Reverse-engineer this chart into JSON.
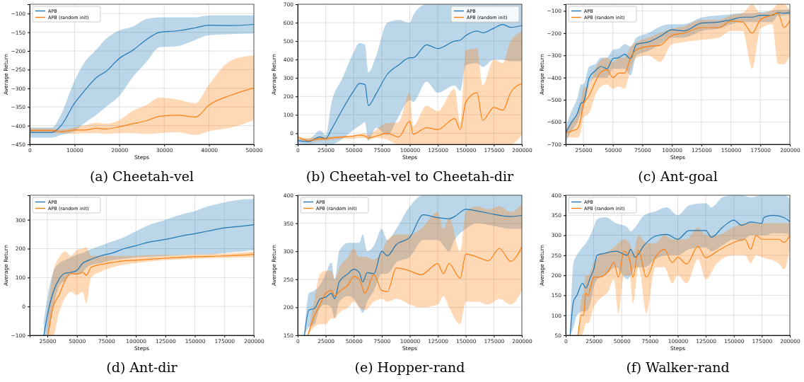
{
  "chart_data": [
    {
      "type": "line",
      "title": "(a) Cheetah-vel",
      "xlabel": "Steps",
      "ylabel": "Average Return",
      "xlim": [
        0,
        50000
      ],
      "xticks": [
        0,
        10000,
        20000,
        30000,
        40000,
        50000
      ],
      "ylim": [
        -450,
        -75
      ],
      "yticks": [
        -450,
        -400,
        -350,
        -300,
        -250,
        -200,
        -150,
        -100
      ],
      "grid": true,
      "legend": "top left",
      "series": [
        {
          "name": "APB",
          "color": "#1f77b4",
          "x": [
            0,
            5000,
            7000,
            10000,
            12000,
            15000,
            17000,
            20000,
            23000,
            26000,
            29000,
            33000,
            37000,
            40000,
            45000,
            50000
          ],
          "values": [
            -418,
            -418,
            -400,
            -340,
            -310,
            -270,
            -255,
            -220,
            -198,
            -170,
            -150,
            -146,
            -138,
            -131,
            -132,
            -129
          ],
          "lower": [
            -432,
            -432,
            -425,
            -415,
            -395,
            -370,
            -350,
            -320,
            -270,
            -230,
            -190,
            -187,
            -170,
            -158,
            -155,
            -153
          ],
          "upper": [
            -405,
            -405,
            -370,
            -280,
            -235,
            -195,
            -168,
            -145,
            -135,
            -115,
            -110,
            -110,
            -110,
            -105,
            -105,
            -105
          ]
        },
        {
          "name": "APB (random init)",
          "color": "#ff7f0e",
          "x": [
            0,
            5000,
            7000,
            10000,
            12000,
            15000,
            17000,
            20000,
            23000,
            26000,
            29000,
            33000,
            37000,
            40000,
            45000,
            50000
          ],
          "values": [
            -413,
            -413,
            -416,
            -412,
            -412,
            -407,
            -409,
            -403,
            -395,
            -387,
            -375,
            -372,
            -377,
            -345,
            -318,
            -299
          ],
          "lower": [
            -420,
            -420,
            -420,
            -422,
            -420,
            -420,
            -422,
            -420,
            -420,
            -422,
            -420,
            -418,
            -425,
            -415,
            -405,
            -385
          ],
          "upper": [
            -408,
            -408,
            -410,
            -405,
            -400,
            -392,
            -395,
            -385,
            -360,
            -345,
            -325,
            -330,
            -340,
            -290,
            -225,
            -212
          ]
        }
      ]
    },
    {
      "type": "line",
      "title": "(b) Cheetah-vel to Cheetah-dir",
      "xlabel": "Steps",
      "ylabel": "Average Return",
      "xlim": [
        0,
        200000
      ],
      "xticks": [
        0,
        25000,
        50000,
        75000,
        100000,
        125000,
        150000,
        175000,
        200000
      ],
      "ylim": [
        -60,
        700
      ],
      "yticks": [
        0,
        100,
        200,
        300,
        400,
        500,
        600,
        700
      ],
      "grid": true,
      "legend": "top right",
      "series": [
        {
          "name": "APB",
          "color": "#1f77b4",
          "x": [
            0,
            10000,
            20000,
            25000,
            30000,
            40000,
            50000,
            55000,
            60000,
            63000,
            70000,
            80000,
            90000,
            100000,
            103000,
            115000,
            125000,
            140000,
            145000,
            150000,
            160000,
            165000,
            175000,
            183000,
            190000,
            200000
          ],
          "values": [
            -40,
            -45,
            -20,
            -30,
            20,
            130,
            230,
            270,
            265,
            150,
            215,
            320,
            370,
            410,
            410,
            480,
            460,
            500,
            505,
            530,
            555,
            545,
            570,
            590,
            575,
            585
          ],
          "lower": [
            -55,
            -60,
            -55,
            -60,
            -60,
            -30,
            20,
            40,
            60,
            -40,
            30,
            -10,
            90,
            180,
            170,
            280,
            220,
            260,
            230,
            370,
            380,
            360,
            400,
            400,
            390,
            390
          ],
          "upper": [
            -30,
            -30,
            15,
            -10,
            160,
            300,
            440,
            490,
            480,
            330,
            420,
            600,
            615,
            600,
            640,
            700,
            700,
            700,
            700,
            700,
            700,
            700,
            700,
            700,
            700,
            700
          ]
        },
        {
          "name": "APB (random init)",
          "color": "#ff7f0e",
          "x": [
            0,
            10000,
            20000,
            25000,
            30000,
            40000,
            50000,
            55000,
            60000,
            63000,
            70000,
            80000,
            90000,
            100000,
            103000,
            115000,
            125000,
            140000,
            145000,
            150000,
            160000,
            165000,
            175000,
            183000,
            190000,
            200000
          ],
          "values": [
            -20,
            -40,
            -30,
            -30,
            -25,
            -20,
            -15,
            -10,
            -15,
            -25,
            -15,
            0,
            -20,
            65,
            -5,
            30,
            20,
            80,
            20,
            170,
            220,
            70,
            140,
            125,
            220,
            270
          ],
          "lower": [
            -30,
            -50,
            -40,
            -40,
            -35,
            -30,
            -30,
            -25,
            -25,
            -35,
            -25,
            -35,
            -60,
            -60,
            -60,
            -60,
            -60,
            -60,
            -60,
            -60,
            -60,
            -60,
            -60,
            -60,
            -60,
            -10
          ],
          "upper": [
            -20,
            -25,
            -20,
            -20,
            -20,
            -15,
            -10,
            -5,
            0,
            -10,
            20,
            55,
            60,
            220,
            40,
            150,
            120,
            240,
            60,
            450,
            460,
            260,
            400,
            380,
            500,
            550
          ]
        }
      ]
    },
    {
      "type": "line",
      "title": "(c) Ant-goal",
      "xlabel": "Steps",
      "ylabel": "Average Return",
      "xlim": [
        10000,
        200000
      ],
      "xticks": [
        25000,
        50000,
        75000,
        100000,
        125000,
        150000,
        175000,
        200000
      ],
      "ylim": [
        -700,
        -70
      ],
      "yticks": [
        -700,
        -600,
        -500,
        -400,
        -300,
        -200,
        -100
      ],
      "grid": true,
      "legend": "top left",
      "series": [
        {
          "name": "APB",
          "color": "#1f77b4",
          "x": [
            10000,
            15000,
            20000,
            23000,
            25000,
            30000,
            35000,
            40000,
            45000,
            50000,
            55000,
            60000,
            65000,
            70000,
            80000,
            90000,
            100000,
            110000,
            125000,
            140000,
            150000,
            160000,
            168000,
            175000,
            185000,
            190000,
            195000,
            200000
          ],
          "values": [
            -650,
            -600,
            -560,
            -515,
            -510,
            -400,
            -370,
            -350,
            -360,
            -315,
            -310,
            -295,
            -315,
            -250,
            -240,
            -215,
            -185,
            -190,
            -155,
            -150,
            -140,
            -128,
            -128,
            -120,
            -120,
            -108,
            -110,
            -108
          ],
          "lower": [
            -690,
            -640,
            -600,
            -560,
            -540,
            -430,
            -400,
            -400,
            -400,
            -360,
            -360,
            -360,
            -390,
            -300,
            -280,
            -250,
            -220,
            -220,
            -190,
            -180,
            -160,
            -150,
            -150,
            -150,
            -150,
            -120,
            -120,
            -118
          ],
          "upper": [
            -620,
            -550,
            -490,
            -430,
            -430,
            -350,
            -340,
            -310,
            -310,
            -275,
            -270,
            -250,
            -260,
            -220,
            -200,
            -170,
            -160,
            -160,
            -130,
            -120,
            -115,
            -110,
            -110,
            -105,
            -100,
            -95,
            -95,
            -95
          ]
        },
        {
          "name": "APB (random init)",
          "color": "#ff7f0e",
          "x": [
            10000,
            15000,
            20000,
            23000,
            25000,
            30000,
            35000,
            40000,
            45000,
            50000,
            55000,
            60000,
            65000,
            70000,
            80000,
            90000,
            100000,
            110000,
            125000,
            140000,
            150000,
            160000,
            168000,
            175000,
            185000,
            190000,
            195000,
            200000
          ],
          "values": [
            -650,
            -640,
            -630,
            -580,
            -520,
            -480,
            -420,
            -375,
            -365,
            -400,
            -380,
            -380,
            -310,
            -275,
            -260,
            -255,
            -210,
            -200,
            -175,
            -175,
            -145,
            -150,
            -200,
            -140,
            -118,
            -110,
            -175,
            -145
          ],
          "lower": [
            -670,
            -670,
            -670,
            -640,
            -580,
            -560,
            -480,
            -440,
            -430,
            -450,
            -440,
            -450,
            -360,
            -310,
            -300,
            -330,
            -250,
            -240,
            -230,
            -220,
            -190,
            -190,
            -360,
            -180,
            -160,
            -340,
            -340,
            -300
          ],
          "upper": [
            -630,
            -600,
            -560,
            -500,
            -450,
            -430,
            -360,
            -320,
            -310,
            -330,
            -310,
            -310,
            -260,
            -240,
            -220,
            -200,
            -180,
            -170,
            -140,
            -140,
            -120,
            -110,
            -70,
            -110,
            -95,
            -70,
            -70,
            -100
          ]
        }
      ]
    },
    {
      "type": "line",
      "title": "(d) Ant-dir",
      "xlabel": "Steps",
      "ylabel": "Average Return",
      "xlim": [
        10000,
        200000
      ],
      "xticks": [
        25000,
        50000,
        75000,
        100000,
        125000,
        150000,
        175000,
        200000
      ],
      "ylim": [
        -100,
        385
      ],
      "yticks": [
        -100,
        0,
        100,
        200,
        300
      ],
      "grid": true,
      "legend": "top left",
      "series": [
        {
          "name": "APB",
          "color": "#1f77b4",
          "x": [
            22000,
            25000,
            30000,
            35000,
            40000,
            45000,
            50000,
            55000,
            60000,
            70000,
            80000,
            90000,
            100000,
            110000,
            125000,
            140000,
            150000,
            160000,
            175000,
            190000,
            200000
          ],
          "values": [
            -100,
            -30,
            50,
            95,
            115,
            118,
            125,
            150,
            160,
            175,
            185,
            200,
            210,
            222,
            232,
            245,
            252,
            260,
            272,
            278,
            283
          ],
          "lower": [
            -100,
            -100,
            0,
            70,
            90,
            110,
            110,
            120,
            140,
            150,
            160,
            165,
            170,
            172,
            175,
            178,
            180,
            180,
            185,
            190,
            195
          ],
          "upper": [
            -50,
            30,
            120,
            150,
            160,
            170,
            180,
            185,
            195,
            210,
            225,
            240,
            260,
            280,
            300,
            320,
            330,
            345,
            360,
            370,
            372
          ]
        },
        {
          "name": "APB (random init)",
          "color": "#ff7f0e",
          "x": [
            25500,
            30000,
            35000,
            40000,
            45000,
            50000,
            55000,
            58000,
            62000,
            70000,
            80000,
            90000,
            100000,
            110000,
            125000,
            150000,
            175000,
            200000
          ],
          "values": [
            -100,
            0,
            40,
            90,
            115,
            112,
            118,
            108,
            135,
            145,
            152,
            158,
            160,
            163,
            167,
            172,
            175,
            180
          ],
          "lower": [
            -100,
            -100,
            -20,
            30,
            50,
            40,
            50,
            10,
            100,
            120,
            135,
            145,
            150,
            155,
            160,
            165,
            168,
            170
          ],
          "upper": [
            -10,
            120,
            170,
            190,
            175,
            195,
            200,
            205,
            175,
            175,
            175,
            175,
            175,
            178,
            178,
            180,
            183,
            190
          ]
        }
      ]
    },
    {
      "type": "line",
      "title": "(e) Hopper-rand",
      "xlabel": "Steps",
      "ylabel": "Average Return",
      "xlim": [
        0,
        200000
      ],
      "xticks": [
        0,
        25000,
        50000,
        75000,
        100000,
        125000,
        150000,
        175000,
        200000
      ],
      "ylim": [
        150,
        400
      ],
      "yticks": [
        150,
        200,
        250,
        300,
        350,
        400
      ],
      "grid": true,
      "legend": "top left",
      "series": [
        {
          "name": "APB",
          "color": "#1f77b4",
          "x": [
            6000,
            10000,
            15000,
            20000,
            25000,
            30000,
            33000,
            37000,
            45000,
            50000,
            55000,
            58000,
            62000,
            68000,
            75000,
            80000,
            88000,
            100000,
            112000,
            125000,
            135000,
            140000,
            150000,
            160000,
            175000,
            190000,
            200000
          ],
          "values": [
            150,
            195,
            198,
            215,
            218,
            225,
            215,
            245,
            260,
            268,
            262,
            245,
            262,
            260,
            300,
            292,
            312,
            325,
            365,
            360,
            358,
            362,
            375,
            372,
            366,
            362,
            364
          ],
          "lower": [
            150,
            165,
            170,
            200,
            205,
            200,
            180,
            210,
            220,
            215,
            200,
            190,
            210,
            230,
            260,
            260,
            280,
            290,
            320,
            320,
            300,
            320,
            340,
            350,
            345,
            340,
            340
          ],
          "upper": [
            150,
            225,
            230,
            240,
            260,
            280,
            250,
            300,
            315,
            315,
            315,
            330,
            300,
            310,
            340,
            320,
            340,
            380,
            400,
            400,
            400,
            400,
            400,
            400,
            400,
            400,
            400
          ]
        },
        {
          "name": "APB (random init)",
          "color": "#ff7f0e",
          "x": [
            9000,
            15000,
            20000,
            25000,
            30000,
            33000,
            37000,
            45000,
            50000,
            55000,
            60000,
            68000,
            75000,
            80000,
            88000,
            100000,
            110000,
            125000,
            130000,
            135000,
            145000,
            150000,
            160000,
            170000,
            180000,
            190000,
            200000
          ],
          "values": [
            150,
            185,
            205,
            225,
            230,
            220,
            228,
            240,
            255,
            250,
            225,
            258,
            230,
            228,
            270,
            265,
            258,
            278,
            260,
            278,
            252,
            295,
            290,
            283,
            305,
            282,
            308
          ],
          "lower": [
            150,
            165,
            170,
            170,
            180,
            180,
            190,
            200,
            210,
            200,
            195,
            210,
            215,
            210,
            215,
            205,
            200,
            205,
            220,
            200,
            170,
            210,
            210,
            205,
            215,
            205,
            230
          ],
          "upper": [
            150,
            215,
            260,
            265,
            265,
            250,
            270,
            290,
            305,
            290,
            290,
            285,
            300,
            320,
            330,
            330,
            340,
            370,
            340,
            360,
            300,
            370,
            380,
            375,
            380,
            370,
            385
          ]
        }
      ]
    },
    {
      "type": "line",
      "title": "(f) Walker-rand",
      "xlabel": "Steps",
      "ylabel": "Average Return",
      "xlim": [
        0,
        200000
      ],
      "xticks": [
        0,
        25000,
        50000,
        75000,
        100000,
        125000,
        150000,
        175000,
        200000
      ],
      "ylim": [
        50,
        400
      ],
      "yticks": [
        50,
        100,
        150,
        200,
        250,
        300,
        350,
        400
      ],
      "grid": true,
      "legend": "top left",
      "series": [
        {
          "name": "APB",
          "color": "#1f77b4",
          "x": [
            4000,
            7000,
            10000,
            15000,
            18000,
            22000,
            25000,
            28000,
            35000,
            45000,
            55000,
            58000,
            62000,
            70000,
            80000,
            90000,
            100000,
            110000,
            125000,
            130000,
            140000,
            150000,
            157000,
            165000,
            175000,
            177000,
            185000,
            195000,
            200000
          ],
          "values": [
            50,
            135,
            150,
            180,
            168,
            195,
            215,
            250,
            255,
            260,
            250,
            265,
            245,
            275,
            298,
            302,
            290,
            312,
            312,
            295,
            320,
            338,
            325,
            333,
            330,
            345,
            350,
            344,
            334
          ],
          "lower": [
            50,
            70,
            100,
            110,
            110,
            130,
            170,
            190,
            200,
            220,
            190,
            200,
            220,
            220,
            240,
            250,
            250,
            265,
            270,
            260,
            275,
            290,
            285,
            300,
            300,
            300,
            305,
            305,
            300
          ],
          "upper": [
            72,
            230,
            250,
            270,
            280,
            300,
            320,
            340,
            345,
            330,
            320,
            310,
            320,
            350,
            360,
            370,
            350,
            375,
            380,
            370,
            395,
            400,
            400,
            395,
            400,
            400,
            400,
            400,
            390
          ]
        },
        {
          "name": "APB (random init)",
          "color": "#ff7f0e",
          "x": [
            11000,
            14000,
            16000,
            18000,
            20000,
            25000,
            30000,
            38000,
            43000,
            47000,
            52000,
            57000,
            60000,
            65000,
            72000,
            80000,
            88000,
            95000,
            100000,
            108000,
            118000,
            125000,
            135000,
            150000,
            160000,
            165000,
            170000,
            175000,
            190000,
            195000,
            200000
          ],
          "values": [
            50,
            100,
            100,
            155,
            150,
            195,
            195,
            210,
            232,
            195,
            260,
            240,
            195,
            262,
            195,
            245,
            265,
            232,
            245,
            228,
            272,
            244,
            260,
            282,
            290,
            265,
            300,
            290,
            290,
            282,
            300
          ],
          "lower": [
            50,
            50,
            60,
            80,
            80,
            120,
            140,
            160,
            190,
            105,
            200,
            200,
            130,
            220,
            105,
            220,
            220,
            180,
            200,
            180,
            240,
            190,
            230,
            250,
            250,
            230,
            250,
            245,
            230,
            215,
            270
          ],
          "upper": [
            50,
            140,
            160,
            200,
            200,
            230,
            250,
            260,
            270,
            280,
            290,
            280,
            255,
            300,
            280,
            280,
            300,
            290,
            290,
            290,
            320,
            300,
            300,
            320,
            330,
            330,
            330,
            330,
            330,
            330,
            330
          ]
        }
      ]
    }
  ]
}
